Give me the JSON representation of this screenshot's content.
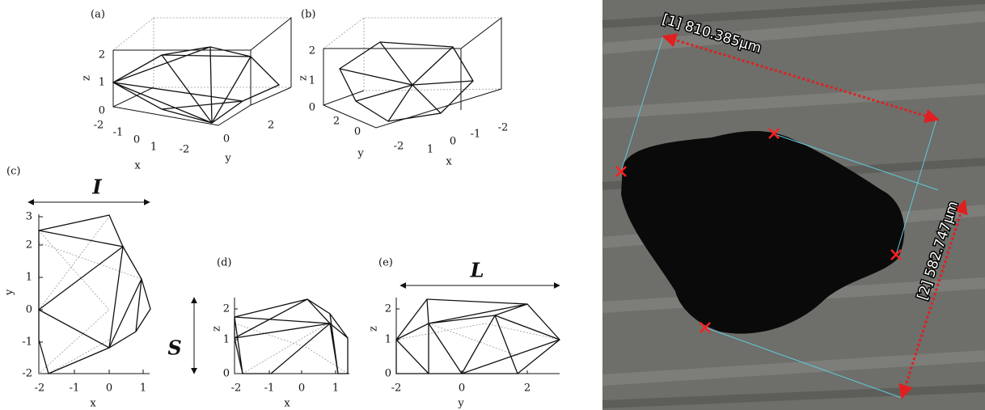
{
  "panels": [
    {
      "label": "(a)",
      "x_label": "x",
      "y_label": "y",
      "z_label": "z",
      "x_ticks": [
        "-2",
        "-1",
        "0",
        "1"
      ],
      "y_ticks": [
        "-2",
        "0",
        "2"
      ],
      "z_ticks": [
        "0",
        "1",
        "2"
      ]
    },
    {
      "label": "(b)",
      "x_label": "x",
      "y_label": "y",
      "z_label": "z",
      "x_ticks": [
        "1",
        "0",
        "-1",
        "-2"
      ],
      "y_ticks": [
        "2",
        "0",
        "-2"
      ],
      "z_ticks": [
        "0",
        "1",
        "2"
      ]
    },
    {
      "label": "(c)",
      "dimension": "I",
      "x_label": "x",
      "y_label": "y",
      "x_ticks": [
        "-2",
        "-1",
        "0",
        "1"
      ],
      "y_ticks": [
        "3",
        "2",
        "1",
        "0",
        "-1",
        "-2"
      ]
    },
    {
      "label": "(d)",
      "dimension": "S",
      "x_label": "x",
      "y_label": "z",
      "x_ticks": [
        "-2",
        "-1",
        "0",
        "1"
      ],
      "y_ticks": [
        "2",
        "1",
        "0"
      ]
    },
    {
      "label": "(e)",
      "dimension": "L",
      "x_label": "y",
      "y_label": "z",
      "x_ticks": [
        "-2",
        "0",
        "2"
      ],
      "y_ticks": [
        "2",
        "1",
        "0"
      ]
    }
  ],
  "photo": {
    "measurements": [
      "[1] 810.385µm",
      "[2] 582.747µm"
    ]
  }
}
